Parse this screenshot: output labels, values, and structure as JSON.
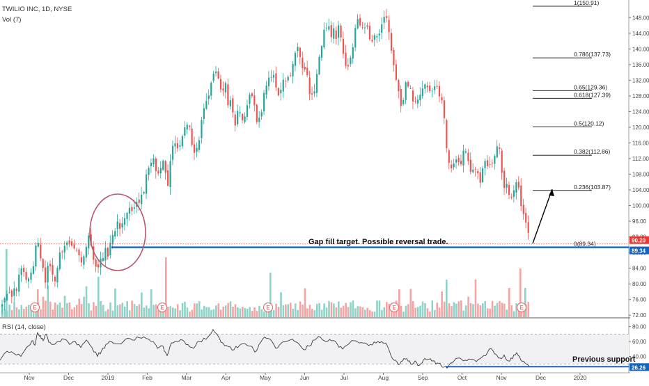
{
  "header": {
    "symbol_title": "TWILIO INC, 1D, NYSE",
    "volume_label": "Vol (7)"
  },
  "rsi": {
    "label": "RSI (14, close)",
    "previous_support_label": "Previous support",
    "support_value": "26.26"
  },
  "annotation": {
    "gap_fill": "Gap fill target. Possible reversal trade."
  },
  "colors": {
    "up": "#26a69a",
    "down": "#ef5350",
    "vol_up": "#8fd2c8",
    "vol_down": "#f4a5a3",
    "fib_line": "#000000",
    "target_line": "#1565c0",
    "circle": "#b8566b",
    "rsi_line": "#3a3a3a",
    "price_badge": "#e53935",
    "target_badge": "#1565c0"
  },
  "chart_data": [
    {
      "type": "candlestick",
      "title": "TWILIO INC, 1D, NYSE",
      "x_ticks": [
        "Nov",
        "Dec",
        "2019",
        "Feb",
        "Mar",
        "Apr",
        "May",
        "Jun",
        "Jul",
        "Aug",
        "Sep",
        "Oct",
        "Nov",
        "Dec",
        "2020"
      ],
      "y_ticks": [
        72.0,
        76.0,
        80.0,
        84.0,
        88.0,
        92.0,
        96.0,
        100.0,
        104.0,
        108.0,
        112.0,
        116.0,
        120.0,
        124.0,
        128.0,
        132.0,
        136.0,
        140.0,
        144.0,
        148.0
      ],
      "ylim": [
        71.5,
        152.5
      ],
      "price_path": [
        [
          0,
          74
        ],
        [
          8,
          76
        ],
        [
          14,
          77
        ],
        [
          22,
          79
        ],
        [
          30,
          84
        ],
        [
          38,
          80
        ],
        [
          44,
          82
        ],
        [
          52,
          91
        ],
        [
          58,
          86
        ],
        [
          64,
          80
        ],
        [
          68,
          86
        ],
        [
          72,
          84
        ],
        [
          78,
          81
        ],
        [
          86,
          88
        ],
        [
          94,
          90
        ],
        [
          100,
          92
        ],
        [
          106,
          88
        ],
        [
          110,
          89
        ],
        [
          116,
          86
        ],
        [
          122,
          90
        ],
        [
          128,
          93
        ],
        [
          132,
          88
        ],
        [
          138,
          82
        ],
        [
          142,
          85
        ],
        [
          146,
          86
        ],
        [
          150,
          88
        ],
        [
          155,
          88
        ],
        [
          160,
          92
        ],
        [
          166,
          96
        ],
        [
          172,
          95
        ],
        [
          178,
          98
        ],
        [
          186,
          100
        ],
        [
          192,
          99
        ],
        [
          198,
          101
        ],
        [
          204,
          103
        ],
        [
          210,
          108
        ],
        [
          216,
          112
        ],
        [
          222,
          110
        ],
        [
          228,
          109
        ],
        [
          232,
          113
        ],
        [
          236,
          110
        ],
        [
          240,
          106
        ],
        [
          244,
          113
        ],
        [
          250,
          117
        ],
        [
          256,
          114
        ],
        [
          262,
          119
        ],
        [
          268,
          121
        ],
        [
          274,
          117
        ],
        [
          280,
          113
        ],
        [
          286,
          119
        ],
        [
          290,
          122
        ],
        [
          296,
          128
        ],
        [
          302,
          131
        ],
        [
          308,
          134
        ],
        [
          314,
          132
        ],
        [
          318,
          129
        ],
        [
          322,
          131
        ],
        [
          326,
          127
        ],
        [
          330,
          126
        ],
        [
          336,
          121
        ],
        [
          342,
          124
        ],
        [
          348,
          122
        ],
        [
          354,
          126
        ],
        [
          360,
          128
        ],
        [
          364,
          126
        ],
        [
          368,
          121
        ],
        [
          372,
          122
        ],
        [
          378,
          129
        ],
        [
          384,
          132
        ],
        [
          390,
          134
        ],
        [
          396,
          131
        ],
        [
          400,
          127
        ],
        [
          404,
          131
        ],
        [
          408,
          131
        ],
        [
          414,
          132
        ],
        [
          418,
          136
        ],
        [
          424,
          141
        ],
        [
          430,
          139
        ],
        [
          434,
          135
        ],
        [
          438,
          135
        ],
        [
          442,
          130
        ],
        [
          446,
          127
        ],
        [
          452,
          131
        ],
        [
          458,
          139
        ],
        [
          462,
          143
        ],
        [
          466,
          145
        ],
        [
          470,
          146
        ],
        [
          474,
          142
        ],
        [
          478,
          145
        ],
        [
          482,
          143
        ],
        [
          486,
          146
        ],
        [
          490,
          141
        ],
        [
          494,
          136
        ],
        [
          500,
          135
        ],
        [
          504,
          140
        ],
        [
          508,
          143
        ],
        [
          512,
          147
        ],
        [
          516,
          145
        ],
        [
          522,
          144
        ],
        [
          526,
          146
        ],
        [
          530,
          142
        ],
        [
          534,
          143
        ],
        [
          538,
          145
        ],
        [
          542,
          144
        ],
        [
          546,
          146
        ],
        [
          552,
          148
        ],
        [
          556,
          147
        ],
        [
          560,
          140
        ],
        [
          564,
          136
        ],
        [
          568,
          132
        ],
        [
          572,
          127
        ],
        [
          576,
          125
        ],
        [
          580,
          130
        ],
        [
          584,
          131
        ],
        [
          588,
          129
        ],
        [
          592,
          127
        ],
        [
          596,
          128
        ],
        [
          600,
          126
        ],
        [
          604,
          129
        ],
        [
          610,
          132
        ],
        [
          614,
          131
        ],
        [
          618,
          129
        ],
        [
          622,
          131
        ],
        [
          628,
          130
        ],
        [
          632,
          128
        ],
        [
          636,
          124
        ],
        [
          640,
          116
        ],
        [
          644,
          111
        ],
        [
          648,
          110
        ],
        [
          652,
          112
        ],
        [
          656,
          112
        ],
        [
          660,
          108
        ],
        [
          664,
          114
        ],
        [
          668,
          113
        ],
        [
          672,
          110
        ],
        [
          676,
          108
        ],
        [
          680,
          109
        ],
        [
          684,
          108
        ],
        [
          688,
          106
        ],
        [
          692,
          109
        ],
        [
          696,
          112
        ],
        [
          700,
          108
        ],
        [
          704,
          110
        ],
        [
          708,
          112
        ],
        [
          712,
          116
        ],
        [
          716,
          115
        ],
        [
          720,
          108
        ],
        [
          724,
          105
        ],
        [
          728,
          104
        ],
        [
          732,
          100
        ],
        [
          736,
          104
        ],
        [
          740,
          106
        ],
        [
          744,
          105
        ],
        [
          748,
          100
        ],
        [
          752,
          96
        ],
        [
          756,
          93
        ],
        [
          760,
          90
        ]
      ],
      "fib_levels": [
        {
          "label": "1(150.91)",
          "value": 150.91
        },
        {
          "label": "0.786(137.73)",
          "value": 137.73
        },
        {
          "label": "0.65(129.36)",
          "value": 129.36
        },
        {
          "label": "0.618(127.39)",
          "value": 127.39
        },
        {
          "label": "0.5(120.12)",
          "value": 120.12
        },
        {
          "label": "0.382(112.86)",
          "value": 112.86
        },
        {
          "label": "0.236(103.87)",
          "value": 103.87
        },
        {
          "label": "0(89.34)",
          "value": 89.34
        }
      ],
      "gap_fill_target": 89.34,
      "last_price": 90.2,
      "price_badges": [
        {
          "label": "90.20",
          "value": 90.2,
          "kind": "last"
        },
        {
          "label": "89.34",
          "value": 89.34,
          "kind": "target"
        }
      ],
      "earnings_markers": [
        {
          "label": "E",
          "x": 50
        },
        {
          "label": "E",
          "x": 233
        },
        {
          "label": "E",
          "x": 385
        },
        {
          "label": "E",
          "x": 566
        },
        {
          "label": "E",
          "x": 749
        }
      ]
    },
    {
      "type": "line",
      "title": "RSI (14, close)",
      "y_ticks": [
        40.0,
        60.0,
        80.0
      ],
      "ylim": [
        20,
        87
      ],
      "bands": [
        30,
        70
      ],
      "previous_support": 26.26,
      "rsi_path": [
        [
          0,
          35
        ],
        [
          10,
          47
        ],
        [
          20,
          44
        ],
        [
          30,
          40
        ],
        [
          38,
          52
        ],
        [
          46,
          61
        ],
        [
          50,
          55
        ],
        [
          54,
          72
        ],
        [
          58,
          68
        ],
        [
          62,
          61
        ],
        [
          66,
          70
        ],
        [
          70,
          59
        ],
        [
          76,
          56
        ],
        [
          84,
          60
        ],
        [
          92,
          63
        ],
        [
          100,
          56
        ],
        [
          108,
          60
        ],
        [
          116,
          52
        ],
        [
          124,
          62
        ],
        [
          132,
          52
        ],
        [
          140,
          40
        ],
        [
          146,
          48
        ],
        [
          152,
          56
        ],
        [
          160,
          60
        ],
        [
          170,
          57
        ],
        [
          180,
          63
        ],
        [
          190,
          62
        ],
        [
          200,
          65
        ],
        [
          210,
          64
        ],
        [
          220,
          60
        ],
        [
          226,
          51
        ],
        [
          234,
          54
        ],
        [
          240,
          41
        ],
        [
          246,
          58
        ],
        [
          254,
          60
        ],
        [
          262,
          62
        ],
        [
          270,
          56
        ],
        [
          278,
          51
        ],
        [
          286,
          60
        ],
        [
          296,
          63
        ],
        [
          306,
          76
        ],
        [
          312,
          69
        ],
        [
          320,
          58
        ],
        [
          328,
          53
        ],
        [
          336,
          49
        ],
        [
          344,
          55
        ],
        [
          352,
          57
        ],
        [
          360,
          54
        ],
        [
          366,
          46
        ],
        [
          372,
          56
        ],
        [
          380,
          66
        ],
        [
          388,
          63
        ],
        [
          396,
          51
        ],
        [
          404,
          58
        ],
        [
          412,
          60
        ],
        [
          420,
          63
        ],
        [
          428,
          58
        ],
        [
          436,
          49
        ],
        [
          444,
          54
        ],
        [
          452,
          62
        ],
        [
          460,
          66
        ],
        [
          468,
          60
        ],
        [
          476,
          61
        ],
        [
          484,
          57
        ],
        [
          492,
          50
        ],
        [
          500,
          56
        ],
        [
          508,
          61
        ],
        [
          516,
          58
        ],
        [
          524,
          58
        ],
        [
          532,
          56
        ],
        [
          540,
          58
        ],
        [
          548,
          60
        ],
        [
          554,
          58
        ],
        [
          560,
          45
        ],
        [
          566,
          35
        ],
        [
          572,
          29
        ],
        [
          578,
          34
        ],
        [
          584,
          37
        ],
        [
          590,
          30
        ],
        [
          596,
          34
        ],
        [
          602,
          28
        ],
        [
          608,
          35
        ],
        [
          614,
          36
        ],
        [
          620,
          34
        ],
        [
          626,
          30
        ],
        [
          632,
          31
        ],
        [
          638,
          26
        ],
        [
          644,
          27
        ],
        [
          652,
          34
        ],
        [
          660,
          38
        ],
        [
          668,
          35
        ],
        [
          676,
          36
        ],
        [
          684,
          33
        ],
        [
          692,
          39
        ],
        [
          700,
          45
        ],
        [
          706,
          50
        ],
        [
          712,
          43
        ],
        [
          718,
          38
        ],
        [
          724,
          42
        ],
        [
          730,
          34
        ],
        [
          736,
          37
        ],
        [
          742,
          45
        ],
        [
          748,
          35
        ],
        [
          754,
          31
        ],
        [
          760,
          27
        ]
      ]
    }
  ]
}
